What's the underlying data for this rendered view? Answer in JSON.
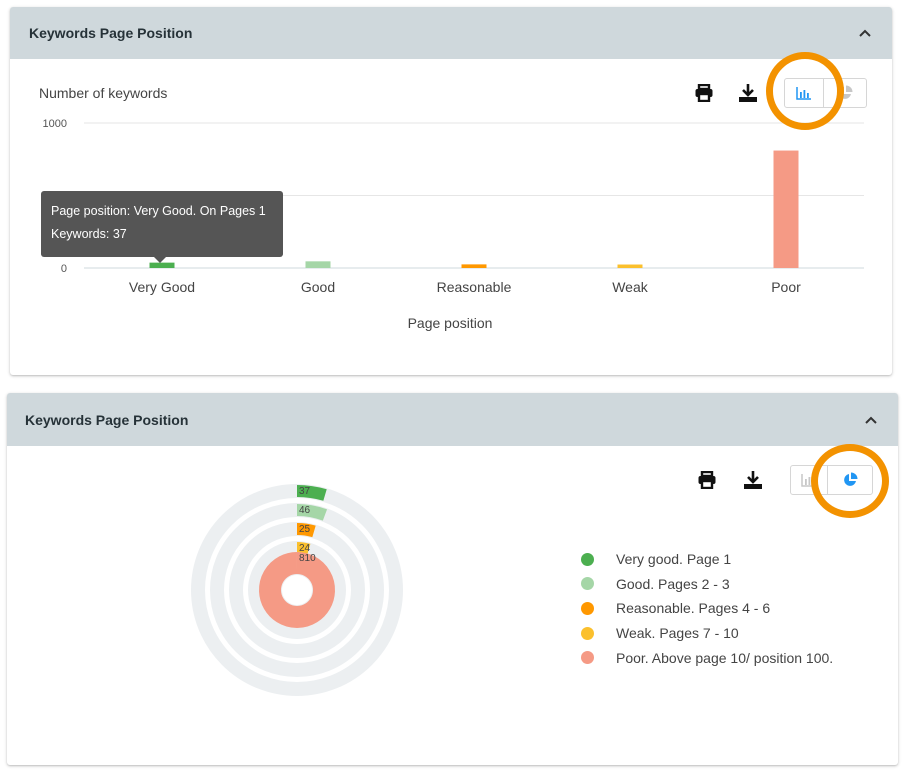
{
  "bar_panel": {
    "title": "Keywords Page Position",
    "view": "bar"
  },
  "pie_panel": {
    "title": "Keywords Page Position",
    "view": "pie"
  },
  "icons": {
    "collapse": "chevron-up-icon",
    "print": "print-icon",
    "download": "download-icon",
    "bar_toggle": "bar-chart-icon",
    "pie_toggle": "pie-chart-icon"
  },
  "colors": {
    "header_bg": "#cfd8dc",
    "active_toggle": "#2196f3",
    "highlight_ring": "#f39200",
    "very_good": "#4caf50",
    "good": "#a5d6a7",
    "reasonable": "#ff9800",
    "weak": "#fbc02d",
    "poor": "#f59a85",
    "track": "#eceff1"
  },
  "tooltip": {
    "line1": "Page position: Very Good. On Pages 1",
    "line2": "Keywords: 37"
  },
  "chart_data": [
    {
      "type": "bar",
      "title": "",
      "ylabel": "Number of keywords",
      "xlabel": "Page position",
      "categories": [
        "Very Good",
        "Good",
        "Reasonable",
        "Weak",
        "Poor"
      ],
      "values": [
        37,
        46,
        25,
        24,
        810
      ],
      "yticks": [
        "0",
        "1000"
      ],
      "ylim": [
        0,
        1000
      ],
      "grid": true,
      "colors": [
        "#4caf50",
        "#a5d6a7",
        "#ff9800",
        "#fbc02d",
        "#f59a85"
      ]
    },
    {
      "type": "pie",
      "subtype": "radial-bar",
      "categories": [
        "Very good. Page 1",
        "Good. Pages 2 - 3",
        "Reasonable. Pages 4 - 6",
        "Weak. Pages 7 - 10",
        "Poor. Above page 10/ position 100."
      ],
      "values": [
        37,
        46,
        25,
        24,
        810
      ],
      "labels": [
        "37",
        "46",
        "25",
        "24",
        "810"
      ],
      "legend": "right",
      "colors": [
        "#4caf50",
        "#a5d6a7",
        "#ff9800",
        "#fbc02d",
        "#f59a85"
      ]
    }
  ]
}
